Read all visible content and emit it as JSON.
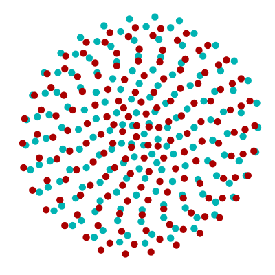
{
  "chart_data": {
    "type": "scatter",
    "title": "",
    "xlabel": "",
    "ylabel": "",
    "grid": false,
    "axes_visible": false,
    "xlim": [
      -6.8,
      6.8
    ],
    "ylim": [
      -6.8,
      6.8
    ],
    "series": [
      {
        "color": "#00b3b3",
        "points": [
          [
            0.2,
            0.07
          ],
          [
            0.18,
            -0.5
          ],
          [
            -0.45,
            -0.43
          ],
          [
            -0.4,
            0.5
          ],
          [
            0.45,
            0.6
          ],
          [
            0.9,
            -0.2
          ],
          [
            0.6,
            -0.95
          ],
          [
            -0.3,
            -1.1
          ],
          [
            -0.95,
            -0.4
          ],
          [
            -0.9,
            0.55
          ],
          [
            -0.2,
            1.15
          ],
          [
            0.75,
            1.2
          ],
          [
            1.4,
            0.4
          ],
          [
            1.35,
            -0.55
          ],
          [
            0.85,
            -1.4
          ],
          [
            -0.05,
            -1.7
          ],
          [
            -0.85,
            -1.4
          ],
          [
            -1.45,
            -0.7
          ],
          [
            -1.55,
            0.25
          ],
          [
            -1.2,
            1.15
          ],
          [
            -0.45,
            1.85
          ],
          [
            0.5,
            1.95
          ],
          [
            1.3,
            1.65
          ],
          [
            1.85,
            0.9
          ],
          [
            2.0,
            -0.05
          ],
          [
            1.7,
            -0.95
          ],
          [
            1.1,
            -1.75
          ],
          [
            0.25,
            -2.2
          ],
          [
            -0.7,
            -2.2
          ],
          [
            -1.55,
            -1.75
          ],
          [
            -2.1,
            -1.0
          ],
          [
            -2.4,
            -0.1
          ],
          [
            -2.25,
            0.85
          ],
          [
            -1.8,
            1.7
          ],
          [
            -1.0,
            2.35
          ],
          [
            -0.05,
            2.65
          ],
          [
            0.9,
            2.55
          ],
          [
            1.75,
            2.1
          ],
          [
            2.4,
            1.35
          ],
          [
            2.75,
            0.4
          ],
          [
            2.7,
            -0.6
          ],
          [
            2.3,
            -1.55
          ],
          [
            1.65,
            -2.35
          ],
          [
            0.8,
            -2.85
          ],
          [
            -0.2,
            -3.05
          ],
          [
            -1.2,
            -2.9
          ],
          [
            -2.05,
            -2.4
          ],
          [
            -2.75,
            -1.65
          ],
          [
            -3.1,
            -0.7
          ],
          [
            -3.15,
            0.3
          ],
          [
            -2.85,
            1.3
          ],
          [
            -2.25,
            2.2
          ],
          [
            -1.4,
            2.9
          ],
          [
            -0.4,
            3.3
          ],
          [
            0.65,
            3.35
          ],
          [
            1.65,
            3.1
          ],
          [
            2.55,
            2.55
          ],
          [
            3.25,
            1.75
          ],
          [
            3.6,
            0.8
          ],
          [
            3.7,
            -0.25
          ],
          [
            3.45,
            -1.3
          ],
          [
            2.95,
            -2.25
          ],
          [
            2.15,
            -3.05
          ],
          [
            1.2,
            -3.55
          ],
          [
            0.1,
            -3.8
          ],
          [
            -1.0,
            -3.75
          ],
          [
            -2.05,
            -3.35
          ],
          [
            -2.95,
            -2.65
          ],
          [
            -3.6,
            -1.75
          ],
          [
            -3.95,
            -0.7
          ],
          [
            -4.0,
            0.4
          ],
          [
            -3.7,
            1.45
          ],
          [
            -3.05,
            2.45
          ],
          [
            -2.2,
            3.2
          ],
          [
            -1.2,
            3.75
          ],
          [
            -0.1,
            4.05
          ],
          [
            1.05,
            4.0
          ],
          [
            2.1,
            3.7
          ],
          [
            3.05,
            3.05
          ],
          [
            3.8,
            2.25
          ],
          [
            4.25,
            1.2
          ],
          [
            4.45,
            0.1
          ],
          [
            4.3,
            -1.0
          ],
          [
            3.9,
            -2.05
          ],
          [
            3.2,
            -3.0
          ],
          [
            2.3,
            -3.7
          ],
          [
            1.2,
            -4.2
          ],
          [
            0.05,
            -4.4
          ],
          [
            -1.15,
            -4.35
          ],
          [
            -2.3,
            -3.9
          ],
          [
            -3.3,
            -3.2
          ],
          [
            -4.1,
            -2.35
          ],
          [
            -4.6,
            -1.3
          ],
          [
            -4.8,
            -0.15
          ],
          [
            -4.65,
            1.05
          ],
          [
            -4.25,
            2.2
          ],
          [
            -3.5,
            3.2
          ],
          [
            -2.6,
            3.95
          ],
          [
            -1.5,
            4.55
          ],
          [
            -0.3,
            4.85
          ],
          [
            0.95,
            4.9
          ],
          [
            2.15,
            4.6
          ],
          [
            3.2,
            4.05
          ],
          [
            4.1,
            3.3
          ],
          [
            4.75,
            2.3
          ],
          [
            5.15,
            1.15
          ],
          [
            5.25,
            -0.05
          ],
          [
            5.05,
            -1.3
          ],
          [
            4.55,
            -2.45
          ],
          [
            3.85,
            -3.4
          ],
          [
            2.9,
            -4.2
          ],
          [
            1.8,
            -4.75
          ],
          [
            0.6,
            -5.05
          ],
          [
            -0.65,
            -5.1
          ],
          [
            -1.9,
            -4.85
          ],
          [
            -3.0,
            -4.35
          ],
          [
            -4.0,
            -3.6
          ],
          [
            -4.7,
            -2.65
          ],
          [
            -5.15,
            -1.5
          ],
          [
            -5.35,
            -0.3
          ],
          [
            -5.25,
            0.95
          ],
          [
            -4.85,
            2.15
          ],
          [
            -4.2,
            3.2
          ],
          [
            -3.3,
            4.15
          ],
          [
            -2.2,
            4.8
          ],
          [
            -1.0,
            5.3
          ],
          [
            0.3,
            5.55
          ],
          [
            1.55,
            5.5
          ],
          [
            2.75,
            5.2
          ],
          [
            3.85,
            4.6
          ],
          [
            4.8,
            3.8
          ],
          [
            5.5,
            2.8
          ],
          [
            5.95,
            1.65
          ],
          [
            6.0,
            0.4
          ],
          [
            5.9,
            -0.85
          ],
          [
            5.4,
            -2.05
          ],
          [
            4.75,
            -3.15
          ],
          [
            3.8,
            -4.05
          ],
          [
            2.75,
            -4.75
          ],
          [
            1.55,
            -5.25
          ],
          [
            0.25,
            -5.5
          ],
          [
            -1.05,
            -5.45
          ],
          [
            -2.35,
            -5.2
          ],
          [
            -3.45,
            -4.6
          ],
          [
            -4.4,
            -3.85
          ],
          [
            -5.15,
            -2.9
          ],
          [
            -5.6,
            -1.75
          ],
          [
            -5.85,
            -0.5
          ],
          [
            -5.8,
            0.8
          ],
          [
            -5.5,
            2.05
          ],
          [
            -4.9,
            3.2
          ],
          [
            -4.05,
            4.2
          ],
          [
            -3.05,
            5.0
          ],
          [
            -1.85,
            5.6
          ],
          [
            -0.55,
            5.95
          ],
          [
            0.75,
            6.05
          ],
          [
            2.0,
            5.85
          ]
        ]
      },
      {
        "color": "#aa0000",
        "points": [
          [
            -0.2,
            -0.07
          ],
          [
            -0.18,
            0.5
          ],
          [
            0.45,
            0.43
          ],
          [
            0.4,
            -0.5
          ],
          [
            -0.45,
            -0.6
          ],
          [
            -0.9,
            0.2
          ],
          [
            -0.6,
            0.95
          ],
          [
            0.3,
            1.1
          ],
          [
            0.95,
            0.4
          ],
          [
            0.9,
            -0.55
          ],
          [
            0.2,
            -1.15
          ],
          [
            -0.75,
            -1.2
          ],
          [
            -1.4,
            -0.4
          ],
          [
            -1.35,
            0.55
          ],
          [
            -0.85,
            1.4
          ],
          [
            0.05,
            1.7
          ],
          [
            0.85,
            1.4
          ],
          [
            1.45,
            0.7
          ],
          [
            1.55,
            -0.25
          ],
          [
            1.2,
            -1.15
          ],
          [
            0.45,
            -1.85
          ],
          [
            -0.5,
            -1.95
          ],
          [
            -1.3,
            -1.65
          ],
          [
            -1.85,
            -0.9
          ],
          [
            -2.0,
            0.05
          ],
          [
            -1.7,
            0.95
          ],
          [
            -1.1,
            1.75
          ],
          [
            -0.25,
            2.2
          ],
          [
            0.7,
            2.2
          ],
          [
            1.55,
            1.75
          ],
          [
            2.1,
            1.0
          ],
          [
            2.4,
            0.1
          ],
          [
            2.25,
            -0.85
          ],
          [
            1.8,
            -1.7
          ],
          [
            1.0,
            -2.35
          ],
          [
            0.05,
            -2.65
          ],
          [
            -0.9,
            -2.55
          ],
          [
            -1.75,
            -2.1
          ],
          [
            -2.4,
            -1.35
          ],
          [
            -2.75,
            -0.4
          ],
          [
            -2.7,
            0.6
          ],
          [
            -2.3,
            1.55
          ],
          [
            -1.65,
            2.35
          ],
          [
            -0.8,
            2.85
          ],
          [
            0.2,
            3.05
          ],
          [
            1.2,
            2.9
          ],
          [
            2.05,
            2.4
          ],
          [
            2.75,
            1.65
          ],
          [
            3.1,
            0.7
          ],
          [
            3.15,
            -0.3
          ],
          [
            2.85,
            -1.3
          ],
          [
            2.25,
            -2.2
          ],
          [
            1.4,
            -2.9
          ],
          [
            0.4,
            -3.3
          ],
          [
            -0.65,
            -3.35
          ],
          [
            -1.65,
            -3.1
          ],
          [
            -2.55,
            -2.55
          ],
          [
            -3.25,
            -1.75
          ],
          [
            -3.6,
            -0.8
          ],
          [
            -3.7,
            0.25
          ],
          [
            -3.45,
            1.3
          ],
          [
            -2.95,
            2.25
          ],
          [
            -2.15,
            3.05
          ],
          [
            -1.2,
            3.55
          ],
          [
            -0.1,
            3.8
          ],
          [
            1.0,
            3.75
          ],
          [
            2.05,
            3.35
          ],
          [
            2.95,
            2.65
          ],
          [
            3.6,
            1.75
          ],
          [
            3.95,
            0.7
          ],
          [
            4.0,
            -0.4
          ],
          [
            3.7,
            -1.45
          ],
          [
            3.05,
            -2.45
          ],
          [
            2.2,
            -3.2
          ],
          [
            1.2,
            -3.75
          ],
          [
            0.1,
            -4.05
          ],
          [
            -1.05,
            -4.0
          ],
          [
            -2.1,
            -3.7
          ],
          [
            -3.05,
            -3.05
          ],
          [
            -3.8,
            -2.25
          ],
          [
            -4.25,
            -1.2
          ],
          [
            -4.45,
            -0.1
          ],
          [
            -4.3,
            1.0
          ],
          [
            -3.9,
            2.05
          ],
          [
            -3.2,
            3.0
          ],
          [
            -2.3,
            3.7
          ],
          [
            -1.2,
            4.2
          ],
          [
            -0.05,
            4.4
          ],
          [
            1.15,
            4.35
          ],
          [
            2.3,
            3.9
          ],
          [
            3.3,
            3.2
          ],
          [
            4.1,
            2.35
          ],
          [
            4.6,
            1.3
          ],
          [
            4.8,
            0.15
          ],
          [
            4.65,
            -1.05
          ],
          [
            4.25,
            -2.2
          ],
          [
            3.5,
            -3.2
          ],
          [
            2.6,
            -3.95
          ],
          [
            1.5,
            -4.55
          ],
          [
            0.3,
            -4.85
          ],
          [
            -0.95,
            -4.9
          ],
          [
            -2.15,
            -4.6
          ],
          [
            -3.2,
            -4.05
          ],
          [
            -4.1,
            -3.3
          ],
          [
            -4.75,
            -2.3
          ],
          [
            -5.15,
            -1.15
          ],
          [
            -5.25,
            0.05
          ],
          [
            -5.05,
            1.3
          ],
          [
            -4.55,
            2.45
          ],
          [
            -3.85,
            3.4
          ],
          [
            -2.9,
            4.2
          ],
          [
            -1.8,
            4.75
          ],
          [
            -0.6,
            5.05
          ],
          [
            0.65,
            5.1
          ],
          [
            1.9,
            4.85
          ],
          [
            3.0,
            4.35
          ],
          [
            4.0,
            3.6
          ],
          [
            4.7,
            2.65
          ],
          [
            5.15,
            1.5
          ],
          [
            5.35,
            0.3
          ],
          [
            5.25,
            -0.95
          ],
          [
            4.85,
            -2.15
          ],
          [
            4.2,
            -3.2
          ],
          [
            3.3,
            -4.15
          ],
          [
            2.2,
            -4.8
          ],
          [
            1.0,
            -5.3
          ],
          [
            -0.3,
            -5.55
          ],
          [
            -1.55,
            -5.5
          ],
          [
            -2.75,
            -5.2
          ],
          [
            -3.85,
            -4.6
          ],
          [
            -4.8,
            -3.8
          ],
          [
            -5.5,
            -2.8
          ],
          [
            -5.95,
            -1.65
          ],
          [
            -6.0,
            -0.4
          ],
          [
            -5.9,
            0.85
          ],
          [
            -5.4,
            2.05
          ],
          [
            -4.75,
            3.15
          ],
          [
            -3.8,
            4.05
          ],
          [
            -2.75,
            4.75
          ],
          [
            -1.55,
            5.25
          ],
          [
            -0.25,
            5.5
          ],
          [
            1.05,
            5.45
          ],
          [
            2.35,
            5.2
          ],
          [
            3.45,
            4.6
          ],
          [
            4.4,
            3.85
          ],
          [
            5.15,
            2.9
          ],
          [
            5.6,
            1.75
          ],
          [
            5.85,
            0.5
          ],
          [
            5.8,
            -0.8
          ],
          [
            5.5,
            -2.05
          ],
          [
            4.9,
            -3.2
          ],
          [
            4.05,
            -4.2
          ],
          [
            3.05,
            -5.0
          ],
          [
            1.85,
            -5.6
          ],
          [
            0.55,
            -5.95
          ],
          [
            -0.75,
            -6.05
          ],
          [
            -2.0,
            -5.85
          ]
        ]
      }
    ]
  }
}
